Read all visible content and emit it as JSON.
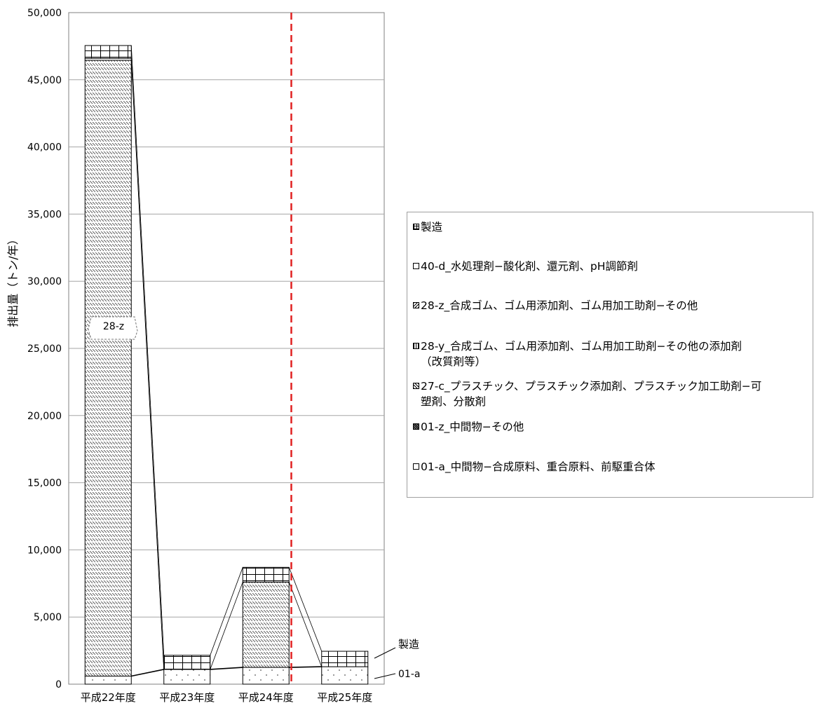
{
  "chart_data": {
    "type": "bar",
    "stacked": true,
    "ylabel": "排出量（トン/年）",
    "ylim": [
      0,
      50000
    ],
    "yticks": [
      "0",
      "5,000",
      "10,000",
      "15,000",
      "20,000",
      "25,000",
      "30,000",
      "35,000",
      "40,000",
      "45,000",
      "50,000"
    ],
    "categories": [
      "平成22年度",
      "平成23年度",
      "平成24年度",
      "平成25年度"
    ],
    "series": [
      {
        "name": "01-a_中間物−合成原料、重合原料、前駆重合体",
        "values": [
          600,
          1100,
          1250,
          1300
        ],
        "pattern": "dots"
      },
      {
        "name": "01-z_中間物−その他",
        "values": [
          0,
          0,
          0,
          0
        ],
        "pattern": "dense"
      },
      {
        "name": "27-c_プラスチック、プラスチック添加剤、プラスチック加工助剤−可塑剤、分散剤",
        "values": [
          0,
          0,
          0,
          0
        ],
        "pattern": "diagonal"
      },
      {
        "name": "28-y_合成ゴム、ゴム用添加剤、ゴム用加工助剤−その他の添加剤（改質剤等）",
        "values": [
          0,
          0,
          0,
          0
        ],
        "pattern": "vertical"
      },
      {
        "name": "28-z_合成ゴム、ゴム用添加剤、ゴム用加工助剤−その他",
        "values": [
          45850,
          0,
          6350,
          0
        ],
        "pattern": "hatch"
      },
      {
        "name": "40-d_水処理剤−酸化剤、還元剤、pH調節剤",
        "values": [
          150,
          0,
          0,
          0
        ],
        "pattern": "none"
      },
      {
        "name": "製造",
        "values": [
          950,
          1050,
          1100,
          1150
        ],
        "pattern": "grid"
      }
    ],
    "legend_order": [
      6,
      5,
      4,
      3,
      2,
      1,
      0
    ],
    "legend_labels": [
      "製造",
      "40-d_水処理剤−酸化剤、還元剤、pH調節剤",
      "28-z_合成ゴム、ゴム用添加剤、ゴム用加工助剤−その他",
      "28-y_合成ゴム、ゴム用添加剤、ゴム用加工助剤−その他の添加剤\n（改質剤等）",
      "27-c_プラスチック、プラスチック添加剤、プラスチック加工助剤−可\n塑剤、分散剤",
      "01-z_中間物−その他",
      "01-a_中間物−合成原料、重合原料、前駆重合体"
    ],
    "annotations": {
      "in_bar_label": "28-z",
      "callout_top": "製造",
      "callout_bottom": "01-a"
    },
    "divider_after_category": 2,
    "divider_color": "#e02020",
    "legend_position": "right",
    "grid": true
  }
}
